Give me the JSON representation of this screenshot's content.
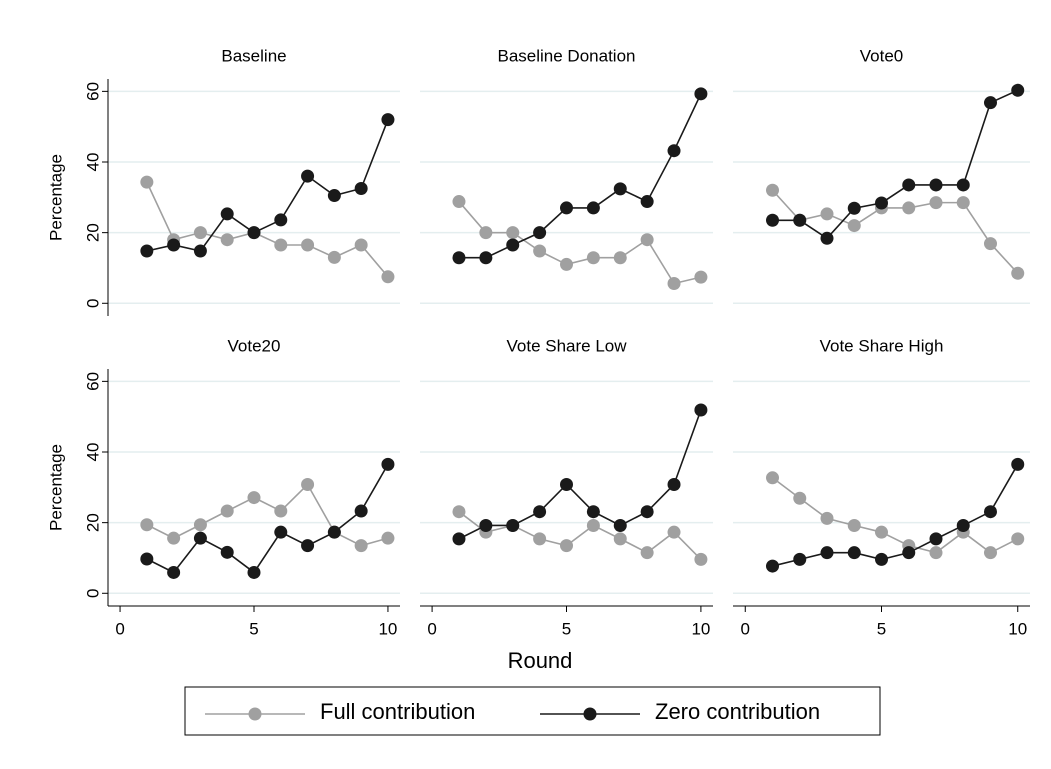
{
  "chart_data": {
    "type": "line",
    "x_label": "Round",
    "y_label": "Percentage",
    "x": [
      1,
      2,
      3,
      4,
      5,
      6,
      7,
      8,
      9,
      10
    ],
    "xlim": [
      -0.45,
      10.45
    ],
    "xticks": [
      0,
      5,
      10
    ],
    "ylim": [
      -3.6,
      63.5
    ],
    "yticks": [
      0,
      20,
      40,
      60
    ],
    "grid": true,
    "series": [
      {
        "name": "Full contribution",
        "color": "#a0a0a0"
      },
      {
        "name": "Zero contribution",
        "color": "#1a1a1a"
      }
    ],
    "panels": [
      {
        "title": "Baseline",
        "series": [
          {
            "values": [
              34.3,
              18,
              20,
              18,
              20,
              16.5,
              16.5,
              13,
              16.5,
              7.5
            ]
          },
          {
            "values": [
              14.8,
              16.5,
              14.8,
              25.3,
              20,
              23.6,
              36,
              30.5,
              32.5,
              52
            ]
          }
        ]
      },
      {
        "title": "Baseline Donation",
        "series": [
          {
            "values": [
              28.8,
              20,
              20,
              14.8,
              11,
              12.9,
              12.9,
              18,
              5.6,
              7.4
            ]
          },
          {
            "values": [
              12.9,
              12.9,
              16.5,
              20,
              27,
              27,
              32.4,
              28.8,
              43.2,
              59.3
            ]
          }
        ]
      },
      {
        "title": "Vote0",
        "series": [
          {
            "values": [
              32,
              23.5,
              25.3,
              22,
              27,
              27,
              28.5,
              28.5,
              16.9,
              8.5
            ]
          },
          {
            "values": [
              23.5,
              23.5,
              18.4,
              26.9,
              28.4,
              33.5,
              33.5,
              33.5,
              56.8,
              60.3
            ]
          }
        ]
      },
      {
        "title": "Vote20",
        "series": [
          {
            "values": [
              19.4,
              15.6,
              19.4,
              23.3,
              27.1,
              23.3,
              30.8,
              17.3,
              13.5,
              15.6
            ]
          },
          {
            "values": [
              9.7,
              5.9,
              15.6,
              11.6,
              5.9,
              17.3,
              13.5,
              17.3,
              23.3,
              36.5
            ]
          }
        ]
      },
      {
        "title": "Vote Share Low",
        "series": [
          {
            "values": [
              23.1,
              17.3,
              19.2,
              15.4,
              13.5,
              19.2,
              15.4,
              11.5,
              17.3,
              9.6
            ]
          },
          {
            "values": [
              15.4,
              19.2,
              19.2,
              23.1,
              30.8,
              23.1,
              19.2,
              23.1,
              30.8,
              51.9
            ]
          }
        ]
      },
      {
        "title": "Vote Share High",
        "series": [
          {
            "values": [
              32.7,
              26.9,
              21.2,
              19.2,
              17.3,
              13.5,
              11.5,
              17.3,
              11.5,
              15.4
            ]
          },
          {
            "values": [
              7.7,
              9.6,
              11.5,
              11.5,
              9.6,
              11.5,
              15.4,
              19.2,
              23.1,
              36.5
            ]
          }
        ]
      }
    ]
  }
}
